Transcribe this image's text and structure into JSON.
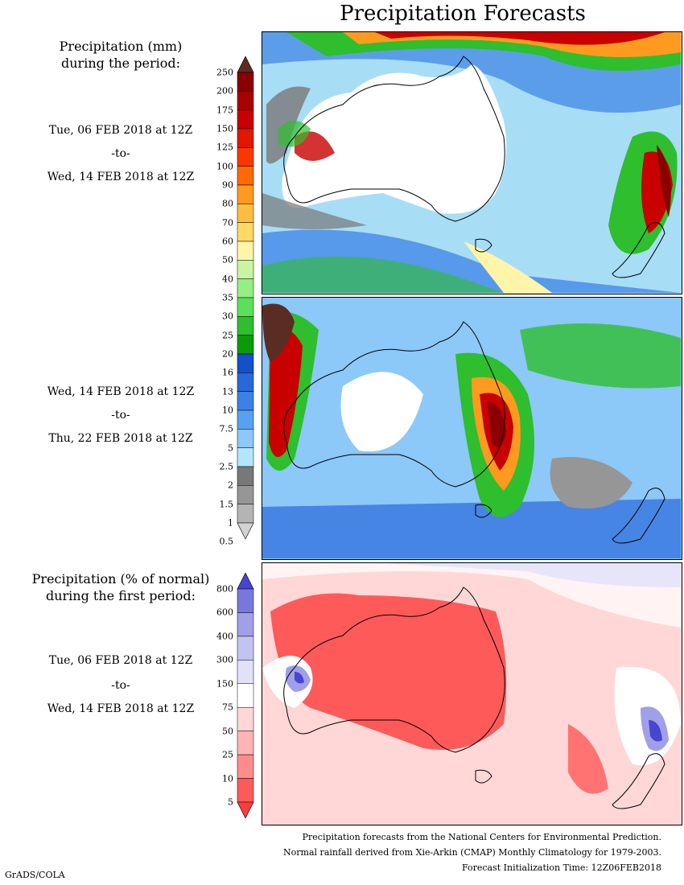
{
  "title": "Precipitation Forecasts",
  "precip_section": {
    "heading_line1": "Precipitation (mm)",
    "heading_line2": "during the period:",
    "period1": {
      "start": "Tue, 06 FEB 2018 at 12Z",
      "sep": "-to-",
      "end": "Wed, 14 FEB 2018 at 12Z"
    },
    "period2": {
      "start": "Wed, 14 FEB 2018 at 12Z",
      "sep": "-to-",
      "end": "Thu, 22 FEB 2018 at 12Z"
    },
    "colorbar": {
      "levels": [
        "250",
        "200",
        "175",
        "150",
        "125",
        "100",
        "90",
        "80",
        "70",
        "60",
        "50",
        "40",
        "35",
        "30",
        "25",
        "20",
        "16",
        "13",
        "10",
        "7.5",
        "5",
        "2.5",
        "2",
        "1.5",
        "1",
        "0.5"
      ],
      "colors": [
        "#5a2d23",
        "#8a0000",
        "#a80000",
        "#c80000",
        "#e01800",
        "#f83800",
        "#ff6a00",
        "#ff9a20",
        "#ffbe40",
        "#ffd966",
        "#fff5a8",
        "#c8f5a0",
        "#96ee84",
        "#5ae05a",
        "#2ebe2e",
        "#0a9a0a",
        "#1450c8",
        "#2868dc",
        "#3c82e6",
        "#5aa0f0",
        "#8cc8f8",
        "#b4e6fa",
        "#787878",
        "#969696",
        "#b4b4b4",
        "#d2d2d2"
      ]
    }
  },
  "percent_section": {
    "heading_line1": "Precipitation (% of normal)",
    "heading_line2": "during the first period:",
    "period": {
      "start": "Tue, 06 FEB 2018 at 12Z",
      "sep": "-to-",
      "end": "Wed, 14 FEB 2018 at 12Z"
    },
    "colorbar": {
      "levels": [
        "800",
        "600",
        "400",
        "300",
        "150",
        "75",
        "50",
        "25",
        "10",
        "5"
      ],
      "colors": [
        "#4646d2",
        "#7878dc",
        "#a0a0e6",
        "#c3c3f0",
        "#e1e1fa",
        "#ffffff",
        "#ffd7d7",
        "#ffb4b4",
        "#ff8c8c",
        "#ff5a5a",
        "#ff3c3c"
      ]
    }
  },
  "footer": {
    "line1": "Precipitation forecasts from the National Centers for Environmental Prediction.",
    "line2": "Normal rainfall derived from Xie-Arkin (CMAP) Monthly Climatology for 1979-2003.",
    "line3": "Forecast Initialization Time: 12Z06FEB2018"
  },
  "credit": "GrADS/COLA"
}
